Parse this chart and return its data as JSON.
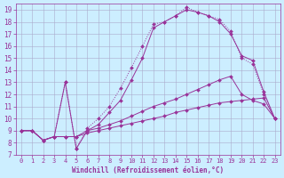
{
  "bg_color": "#cceeff",
  "line_color": "#993399",
  "grid_color": "#aaaacc",
  "xlabel": "Windchill (Refroidissement éolien,°C)",
  "ylabel_ticks": [
    7,
    8,
    9,
    10,
    11,
    12,
    13,
    14,
    15,
    16,
    17,
    18,
    19
  ],
  "xlabel_ticks": [
    0,
    1,
    2,
    3,
    4,
    5,
    6,
    7,
    8,
    9,
    10,
    11,
    12,
    13,
    14,
    15,
    16,
    17,
    18,
    19,
    20,
    21,
    22,
    23
  ],
  "xlim": [
    -0.5,
    23.5
  ],
  "ylim": [
    7.0,
    19.5
  ],
  "series": [
    {
      "x": [
        0,
        1,
        2,
        3,
        4,
        5,
        6,
        7,
        8,
        9,
        10,
        11,
        12,
        13,
        14,
        15,
        16,
        17,
        18,
        19,
        20,
        21,
        22,
        23
      ],
      "y": [
        9,
        9,
        8.2,
        8.5,
        8.5,
        8.5,
        8.8,
        9.0,
        9.2,
        9.4,
        9.6,
        9.8,
        10.0,
        10.2,
        10.5,
        10.7,
        10.9,
        11.1,
        11.3,
        11.4,
        11.5,
        11.6,
        11.7,
        10.0
      ]
    },
    {
      "x": [
        0,
        1,
        2,
        3,
        4,
        5,
        6,
        7,
        8,
        9,
        10,
        11,
        12,
        13,
        14,
        15,
        16,
        17,
        18,
        19,
        20,
        21,
        22,
        23
      ],
      "y": [
        9,
        9,
        8.2,
        8.5,
        8.5,
        8.5,
        9.0,
        9.2,
        9.5,
        9.8,
        10.2,
        10.6,
        11.0,
        11.3,
        11.6,
        12.0,
        12.4,
        12.8,
        13.2,
        13.5,
        12.0,
        11.5,
        11.2,
        10.0
      ]
    },
    {
      "x": [
        0,
        1,
        2,
        3,
        4,
        5,
        6,
        7,
        8,
        9,
        10,
        11,
        12,
        13,
        14,
        15,
        16,
        17,
        18,
        19,
        20,
        21,
        22,
        23
      ],
      "y": [
        9,
        9,
        8.2,
        8.5,
        13.0,
        7.5,
        9.0,
        9.5,
        10.5,
        11.5,
        13.2,
        15.0,
        17.5,
        18.0,
        18.5,
        19.0,
        18.8,
        18.5,
        18.0,
        17.0,
        15.2,
        14.8,
        12.2,
        10.0
      ]
    },
    {
      "x": [
        0,
        1,
        2,
        3,
        4,
        5,
        6,
        7,
        8,
        9,
        10,
        11,
        12,
        13,
        14,
        15,
        16,
        17,
        18,
        19,
        20,
        21,
        22,
        23
      ],
      "y": [
        9,
        9,
        8.2,
        8.5,
        13.0,
        7.5,
        9.2,
        10.0,
        11.0,
        12.5,
        14.2,
        16.0,
        17.8,
        18.0,
        18.5,
        19.2,
        18.8,
        18.5,
        18.2,
        17.2,
        15.0,
        14.5,
        12.0,
        10.0
      ]
    }
  ],
  "linestyles": [
    "-",
    "-",
    "-",
    ":"
  ]
}
